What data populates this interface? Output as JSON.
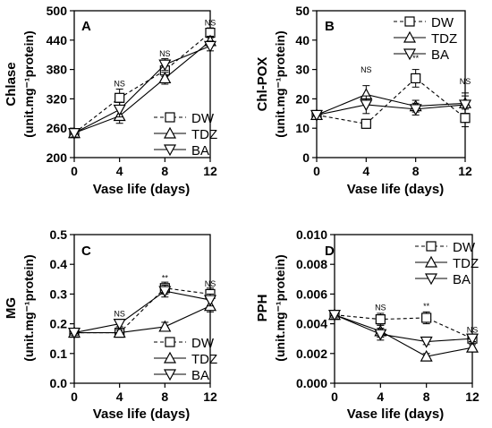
{
  "chart_data": [
    {
      "panel_letter": "A",
      "type": "line",
      "ylabel": "Chlase",
      "ylabel2": "(unit.mg⁻¹protein)",
      "xlabel": "Vase life (days)",
      "x": [
        0,
        4,
        8,
        12
      ],
      "xlim": [
        0,
        12
      ],
      "ylim": [
        200,
        500
      ],
      "yticks": [
        200,
        260,
        320,
        380,
        440,
        500
      ],
      "xticks": [
        0,
        4,
        8,
        12
      ],
      "legend_position": "bottom-right",
      "series": [
        {
          "name": "DW",
          "marker": "square",
          "dashed": true,
          "values": [
            250,
            322,
            378,
            455
          ],
          "err": [
            8,
            18,
            12,
            10
          ]
        },
        {
          "name": "TDZ",
          "marker": "triangle-up",
          "dashed": false,
          "values": [
            250,
            285,
            362,
            438
          ],
          "err": [
            8,
            15,
            12,
            10
          ]
        },
        {
          "name": "BA",
          "marker": "triangle-down",
          "dashed": false,
          "values": [
            250,
            298,
            390,
            428
          ],
          "err": [
            8,
            15,
            12,
            10
          ]
        }
      ],
      "annotations": [
        {
          "x": 4,
          "y": 345,
          "text": "NS"
        },
        {
          "x": 8,
          "y": 407,
          "text": "NS"
        },
        {
          "x": 12,
          "y": 470,
          "text": "NS"
        }
      ]
    },
    {
      "panel_letter": "B",
      "type": "line",
      "ylabel": "Chl-POX",
      "ylabel2": "(unit.mg⁻¹protein)",
      "xlabel": "Vase life (days)",
      "x": [
        0,
        4,
        8,
        12
      ],
      "xlim": [
        0,
        12
      ],
      "ylim": [
        0,
        50
      ],
      "yticks": [
        0,
        10,
        20,
        30,
        40,
        50
      ],
      "xticks": [
        0,
        4,
        8,
        12
      ],
      "legend_position": "top-right",
      "series": [
        {
          "name": "DW",
          "marker": "square",
          "dashed": true,
          "values": [
            14.5,
            11.5,
            27,
            13.5
          ],
          "err": [
            1.5,
            1.5,
            3,
            3
          ]
        },
        {
          "name": "TDZ",
          "marker": "triangle-up",
          "dashed": false,
          "values": [
            14.5,
            21.5,
            17.5,
            18.5
          ],
          "err": [
            1.5,
            3,
            2,
            3.5
          ]
        },
        {
          "name": "BA",
          "marker": "triangle-down",
          "dashed": false,
          "values": [
            14.5,
            18,
            16.5,
            18
          ],
          "err": [
            1.5,
            3,
            2,
            3
          ]
        }
      ],
      "annotations": [
        {
          "x": 4,
          "y": 29,
          "text": "NS"
        },
        {
          "x": 8,
          "y": 33,
          "text": "**"
        },
        {
          "x": 12,
          "y": 25,
          "text": "NS"
        }
      ]
    },
    {
      "panel_letter": "C",
      "type": "line",
      "ylabel": "MG",
      "ylabel2": "(unit.mg⁻¹protein)",
      "xlabel": "Vase life (days)",
      "x": [
        0,
        4,
        8,
        12
      ],
      "xlim": [
        0,
        12
      ],
      "ylim": [
        0,
        0.5
      ],
      "yticks": [
        0.0,
        0.1,
        0.2,
        0.3,
        0.4,
        0.5
      ],
      "ytick_labels": [
        "0.0",
        "0.1",
        "0.2",
        "0.3",
        "0.4",
        "0.5"
      ],
      "xticks": [
        0,
        4,
        8,
        12
      ],
      "legend_position": "bottom-right",
      "series": [
        {
          "name": "DW",
          "marker": "square",
          "dashed": true,
          "values": [
            0.17,
            0.17,
            0.32,
            0.3
          ],
          "err": [
            0.01,
            0.01,
            0.02,
            0.02
          ]
        },
        {
          "name": "TDZ",
          "marker": "triangle-up",
          "dashed": false,
          "values": [
            0.17,
            0.17,
            0.19,
            0.26
          ],
          "err": [
            0.01,
            0.01,
            0.015,
            0.02
          ]
        },
        {
          "name": "BA",
          "marker": "triangle-down",
          "dashed": false,
          "values": [
            0.17,
            0.2,
            0.31,
            0.28
          ],
          "err": [
            0.01,
            0.01,
            0.02,
            0.02
          ]
        }
      ],
      "annotations": [
        {
          "x": 4,
          "y": 0.225,
          "text": "NS"
        },
        {
          "x": 8,
          "y": 0.345,
          "text": "**"
        },
        {
          "x": 12,
          "y": 0.325,
          "text": "NS"
        }
      ]
    },
    {
      "panel_letter": "D",
      "type": "line",
      "ylabel": "PPH",
      "ylabel2": "(unit.mg⁻¹protein)",
      "xlabel": "Vase life (days)",
      "x": [
        0,
        4,
        8,
        12
      ],
      "xlim": [
        0,
        12
      ],
      "ylim": [
        0,
        0.01
      ],
      "yticks": [
        0.0,
        0.002,
        0.004,
        0.006,
        0.008,
        0.01
      ],
      "ytick_labels": [
        "0.000",
        "0.002",
        "0.004",
        "0.006",
        "0.008",
        "0.010"
      ],
      "xticks": [
        0,
        4,
        8,
        12
      ],
      "legend_position": "top-right",
      "series": [
        {
          "name": "DW",
          "marker": "square",
          "dashed": true,
          "values": [
            0.0046,
            0.0043,
            0.0044,
            0.003
          ],
          "err": [
            0.0002,
            0.0004,
            0.0004,
            0.0002
          ]
        },
        {
          "name": "TDZ",
          "marker": "triangle-up",
          "dashed": false,
          "values": [
            0.0046,
            0.0035,
            0.0018,
            0.0024
          ],
          "err": [
            0.0002,
            0.0004,
            0.0002,
            0.0002
          ]
        },
        {
          "name": "BA",
          "marker": "triangle-down",
          "dashed": false,
          "values": [
            0.0046,
            0.0033,
            0.0028,
            0.003
          ],
          "err": [
            0.0002,
            0.0004,
            0.0002,
            0.0002
          ]
        }
      ],
      "annotations": [
        {
          "x": 4,
          "y": 0.0049,
          "text": "NS"
        },
        {
          "x": 8,
          "y": 0.005,
          "text": "**"
        },
        {
          "x": 12,
          "y": 0.0034,
          "text": "NS"
        }
      ]
    }
  ]
}
